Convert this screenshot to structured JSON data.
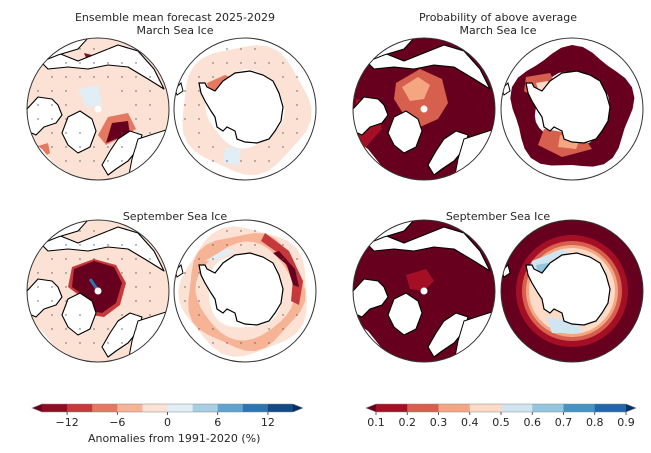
{
  "figure": {
    "left_panel_title_line1": "Ensemble mean forecast 2025-2029",
    "left_panel_title_line2": "March Sea Ice",
    "left_panel_row2_title": "September Sea Ice",
    "right_panel_title_line1": "Probability of above average",
    "right_panel_title_line2": "March Sea Ice",
    "right_panel_row2_title": "September Sea Ice"
  },
  "chart_data": [
    {
      "type": "heatmap",
      "title": "Ensemble mean forecast 2025-2029",
      "subplots": [
        {
          "row": "March Sea Ice",
          "hemisphere": "north",
          "description": "Mostly small negative anomalies; strong negative anomaly (< -12%) in Barents Sea and east of Greenland; negative band in Sea of Okhotsk/Bering; stippling marks"
        },
        {
          "row": "March Sea Ice",
          "hemisphere": "south",
          "description": "Weak negative anomalies around Antarctica; stronger negative in Weddell Sea region; small positive patches"
        },
        {
          "row": "September Sea Ice",
          "hemisphere": "north",
          "description": "Strong negative anomaly (< -12%) over central Arctic Ocean; small positive streak near pole"
        },
        {
          "row": "September Sea Ice",
          "hemisphere": "south",
          "description": "Ring of negative anomalies around sea-ice edge, strongest (-9 to -15%) in Indian/Pacific sector; small positive patches near coast"
        }
      ],
      "colorbar": {
        "label": "Anomalies from 1991-2020 (%)",
        "ticks": [
          -12,
          -6,
          0,
          6,
          12
        ],
        "bounds": [
          -15,
          -12,
          -9,
          -6,
          -3,
          0,
          3,
          6,
          9,
          12,
          15
        ],
        "extend": "both",
        "colors": [
          "#67001f",
          "#8f0d22",
          "#c7383a",
          "#e57860",
          "#f6b396",
          "#fbe2d4",
          "#e1eef5",
          "#a6cfe3",
          "#5ea3cd",
          "#2b75b2",
          "#114a84",
          "#053061"
        ]
      }
    },
    {
      "type": "heatmap",
      "title": "Probability of above average",
      "subplots": [
        {
          "row": "March Sea Ice",
          "hemisphere": "north",
          "description": "Mostly very low probability (<0.1) across ice edge; central Arctic 0.2-0.4"
        },
        {
          "row": "March Sea Ice",
          "hemisphere": "south",
          "description": "Ring of probability <0.1; Weddell and Ross sectors 0.2-0.5"
        },
        {
          "row": "September Sea Ice",
          "hemisphere": "north",
          "description": "Nearly all < 0.1; central Arctic 0.1-0.2"
        },
        {
          "row": "September Sea Ice",
          "hemisphere": "south",
          "description": "Outer ring < 0.1 grading to 0.4-0.6 near coast; patches 0.6-0.7 in Weddell Sea"
        }
      ],
      "colorbar": {
        "label": "",
        "ticks": [
          0.1,
          0.2,
          0.3,
          0.4,
          0.5,
          0.6,
          0.7,
          0.8,
          0.9
        ],
        "bounds": [
          0.1,
          0.2,
          0.3,
          0.4,
          0.5,
          0.6,
          0.7,
          0.8,
          0.9
        ],
        "extend": "both",
        "colors": [
          "#67001f",
          "#a50f26",
          "#d6604d",
          "#f4a582",
          "#fddbc7",
          "#d1e5f0",
          "#92c5de",
          "#4393c3",
          "#2166ac",
          "#053061"
        ]
      }
    }
  ]
}
